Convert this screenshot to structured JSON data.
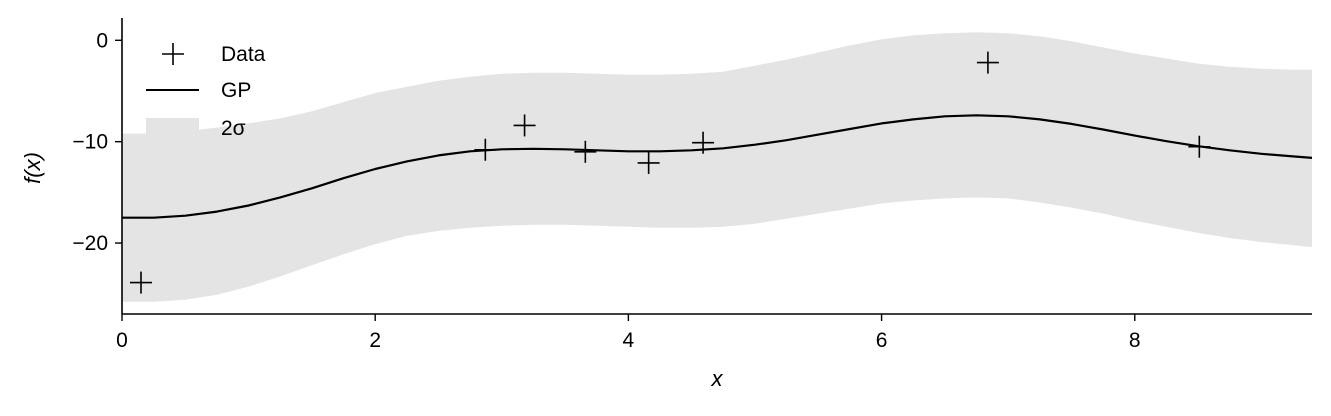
{
  "chart_data": {
    "type": "line",
    "title": "",
    "xlabel": "x",
    "ylabel": "f(x)",
    "xlim": [
      0,
      9.4
    ],
    "ylim": [
      -27,
      2.2
    ],
    "xticks": [
      0,
      2,
      4,
      6,
      8
    ],
    "xtick_labels": [
      "0",
      "2",
      "4",
      "6",
      "8"
    ],
    "yticks": [
      0,
      -10,
      -20
    ],
    "ytick_labels": [
      "0",
      "−10",
      "−20"
    ],
    "grid": false,
    "legend_position": "top-left",
    "legend": [
      {
        "label": "Data",
        "kind": "marker-plus"
      },
      {
        "label": "GP",
        "kind": "line"
      },
      {
        "label": "2σ",
        "kind": "band"
      }
    ],
    "series": [
      {
        "name": "Data",
        "kind": "scatter",
        "marker": "plus",
        "color": "#000000",
        "points": [
          {
            "x": 0.15,
            "y": -23.9
          },
          {
            "x": 2.87,
            "y": -10.8
          },
          {
            "x": 3.18,
            "y": -8.4
          },
          {
            "x": 3.66,
            "y": -11.0
          },
          {
            "x": 4.16,
            "y": -12.1
          },
          {
            "x": 4.59,
            "y": -10.1
          },
          {
            "x": 6.84,
            "y": -2.2
          },
          {
            "x": 8.51,
            "y": -10.5
          }
        ]
      },
      {
        "name": "GP",
        "kind": "line",
        "color": "#000000",
        "points": [
          {
            "x": 0.0,
            "y": -17.5
          },
          {
            "x": 0.25,
            "y": -17.5
          },
          {
            "x": 0.5,
            "y": -17.3
          },
          {
            "x": 0.75,
            "y": -16.9
          },
          {
            "x": 1.0,
            "y": -16.3
          },
          {
            "x": 1.25,
            "y": -15.5
          },
          {
            "x": 1.5,
            "y": -14.6
          },
          {
            "x": 1.75,
            "y": -13.6
          },
          {
            "x": 2.0,
            "y": -12.7
          },
          {
            "x": 2.25,
            "y": -11.95
          },
          {
            "x": 2.5,
            "y": -11.35
          },
          {
            "x": 2.75,
            "y": -10.95
          },
          {
            "x": 3.0,
            "y": -10.75
          },
          {
            "x": 3.25,
            "y": -10.7
          },
          {
            "x": 3.5,
            "y": -10.75
          },
          {
            "x": 3.75,
            "y": -10.85
          },
          {
            "x": 4.0,
            "y": -10.95
          },
          {
            "x": 4.25,
            "y": -10.95
          },
          {
            "x": 4.5,
            "y": -10.85
          },
          {
            "x": 4.75,
            "y": -10.65
          },
          {
            "x": 5.0,
            "y": -10.3
          },
          {
            "x": 5.25,
            "y": -9.85
          },
          {
            "x": 5.5,
            "y": -9.3
          },
          {
            "x": 5.75,
            "y": -8.75
          },
          {
            "x": 6.0,
            "y": -8.2
          },
          {
            "x": 6.25,
            "y": -7.8
          },
          {
            "x": 6.5,
            "y": -7.5
          },
          {
            "x": 6.75,
            "y": -7.4
          },
          {
            "x": 7.0,
            "y": -7.5
          },
          {
            "x": 7.25,
            "y": -7.8
          },
          {
            "x": 7.5,
            "y": -8.25
          },
          {
            "x": 7.75,
            "y": -8.8
          },
          {
            "x": 8.0,
            "y": -9.4
          },
          {
            "x": 8.25,
            "y": -9.95
          },
          {
            "x": 8.5,
            "y": -10.45
          },
          {
            "x": 8.75,
            "y": -10.85
          },
          {
            "x": 9.0,
            "y": -11.2
          },
          {
            "x": 9.25,
            "y": -11.45
          },
          {
            "x": 9.4,
            "y": -11.6
          }
        ]
      },
      {
        "name": "2σ",
        "kind": "band",
        "color": "#e4e4e4",
        "points": [
          {
            "x": 0.0,
            "lower": -25.8,
            "upper": -9.2
          },
          {
            "x": 0.25,
            "lower": -25.8,
            "upper": -9.2
          },
          {
            "x": 0.5,
            "lower": -25.6,
            "upper": -9.0
          },
          {
            "x": 0.75,
            "lower": -25.1,
            "upper": -8.6
          },
          {
            "x": 1.0,
            "lower": -24.3,
            "upper": -8.2
          },
          {
            "x": 1.25,
            "lower": -23.3,
            "upper": -7.7
          },
          {
            "x": 1.5,
            "lower": -22.2,
            "upper": -7.0
          },
          {
            "x": 1.75,
            "lower": -21.1,
            "upper": -6.1
          },
          {
            "x": 2.0,
            "lower": -20.1,
            "upper": -5.2
          },
          {
            "x": 2.25,
            "lower": -19.3,
            "upper": -4.6
          },
          {
            "x": 2.5,
            "lower": -18.8,
            "upper": -4.0
          },
          {
            "x": 2.75,
            "lower": -18.5,
            "upper": -3.6
          },
          {
            "x": 3.0,
            "lower": -18.3,
            "upper": -3.3
          },
          {
            "x": 3.25,
            "lower": -18.2,
            "upper": -3.2
          },
          {
            "x": 3.5,
            "lower": -18.2,
            "upper": -3.2
          },
          {
            "x": 3.75,
            "lower": -18.3,
            "upper": -3.3
          },
          {
            "x": 4.0,
            "lower": -18.4,
            "upper": -3.4
          },
          {
            "x": 4.25,
            "lower": -18.5,
            "upper": -3.4
          },
          {
            "x": 4.5,
            "lower": -18.5,
            "upper": -3.3
          },
          {
            "x": 4.75,
            "lower": -18.4,
            "upper": -3.1
          },
          {
            "x": 5.0,
            "lower": -18.1,
            "upper": -2.5
          },
          {
            "x": 5.25,
            "lower": -17.6,
            "upper": -1.9
          },
          {
            "x": 5.5,
            "lower": -17.1,
            "upper": -1.2
          },
          {
            "x": 5.75,
            "lower": -16.6,
            "upper": -0.5
          },
          {
            "x": 6.0,
            "lower": -16.1,
            "upper": 0.1
          },
          {
            "x": 6.25,
            "lower": -15.8,
            "upper": 0.5
          },
          {
            "x": 6.5,
            "lower": -15.6,
            "upper": 0.7
          },
          {
            "x": 6.75,
            "lower": -15.5,
            "upper": 0.8
          },
          {
            "x": 7.0,
            "lower": -15.6,
            "upper": 0.7
          },
          {
            "x": 7.25,
            "lower": -16.0,
            "upper": 0.4
          },
          {
            "x": 7.5,
            "lower": -16.5,
            "upper": -0.1
          },
          {
            "x": 7.75,
            "lower": -17.1,
            "upper": -0.7
          },
          {
            "x": 8.0,
            "lower": -17.8,
            "upper": -1.3
          },
          {
            "x": 8.25,
            "lower": -18.4,
            "upper": -1.8
          },
          {
            "x": 8.5,
            "lower": -19.0,
            "upper": -2.3
          },
          {
            "x": 8.75,
            "lower": -19.5,
            "upper": -2.6
          },
          {
            "x": 9.0,
            "lower": -19.9,
            "upper": -2.8
          },
          {
            "x": 9.25,
            "lower": -20.2,
            "upper": -2.9
          },
          {
            "x": 9.4,
            "lower": -20.4,
            "upper": -2.9
          }
        ]
      }
    ]
  }
}
